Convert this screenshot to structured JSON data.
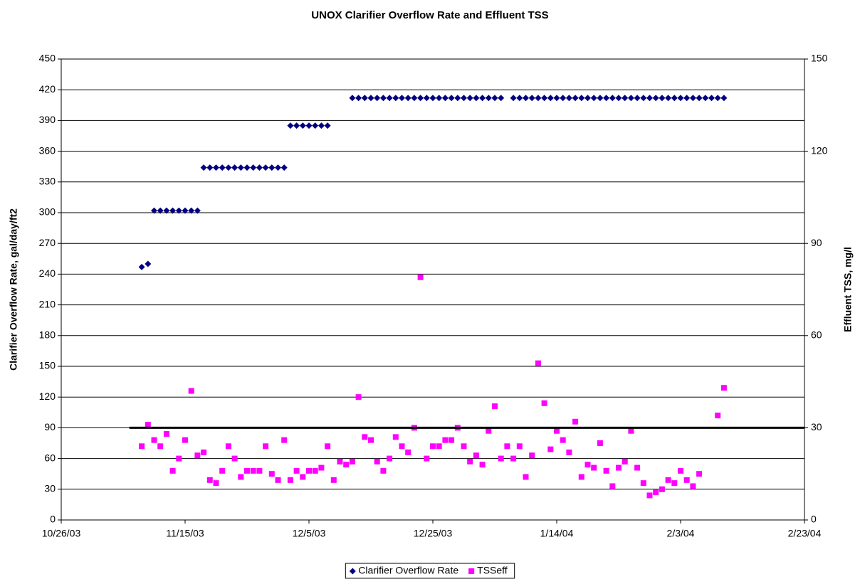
{
  "chart_data": {
    "type": "scatter",
    "title": "UNOX Clarifier Overflow Rate and Effluent TSS",
    "y_label": "Clarifier Overflow Rate, gal/day/ft2",
    "y2_label": "Effluent TSS, mg/l",
    "x": [
      "11/8/03",
      "11/9/03",
      "11/10/03",
      "11/11/03",
      "11/12/03",
      "11/13/03",
      "11/14/03",
      "11/15/03",
      "11/16/03",
      "11/17/03",
      "11/18/03",
      "11/19/03",
      "11/20/03",
      "11/21/03",
      "11/22/03",
      "11/23/03",
      "11/24/03",
      "11/25/03",
      "11/26/03",
      "11/27/03",
      "11/28/03",
      "11/29/03",
      "11/30/03",
      "12/1/03",
      "12/2/03",
      "12/3/03",
      "12/4/03",
      "12/5/03",
      "12/6/03",
      "12/7/03",
      "12/8/03",
      "12/9/03",
      "12/10/03",
      "12/11/03",
      "12/12/03",
      "12/13/03",
      "12/14/03",
      "12/15/03",
      "12/16/03",
      "12/17/03",
      "12/18/03",
      "12/19/03",
      "12/20/03",
      "12/21/03",
      "12/22/03",
      "12/23/03",
      "12/24/03",
      "12/25/03",
      "12/26/03",
      "12/27/03",
      "12/28/03",
      "12/29/03",
      "12/30/03",
      "12/31/03",
      "1/1/04",
      "1/2/04",
      "1/3/04",
      "1/4/04",
      "1/5/04",
      "1/6/04",
      "1/7/04",
      "1/8/04",
      "1/9/04",
      "1/10/04",
      "1/11/04",
      "1/12/04",
      "1/13/04",
      "1/14/04",
      "1/15/04",
      "1/16/04",
      "1/17/04",
      "1/18/04",
      "1/19/04",
      "1/20/04",
      "1/21/04",
      "1/22/04",
      "1/23/04",
      "1/24/04",
      "1/25/04",
      "1/26/04",
      "1/27/04",
      "1/28/04",
      "1/29/04",
      "1/30/04",
      "1/31/04",
      "2/1/04",
      "2/2/04",
      "2/3/04",
      "2/4/04",
      "2/5/04",
      "2/6/04",
      "2/7/04",
      "2/8/04",
      "2/9/04",
      "2/10/04"
    ],
    "series": [
      {
        "name": "Clarifier Overflow Rate",
        "color": "#000080",
        "marker": "diamond",
        "axis": "y",
        "values": [
          247,
          250,
          302,
          302,
          302,
          302,
          302,
          302,
          302,
          302,
          344,
          344,
          344,
          344,
          344,
          344,
          344,
          344,
          344,
          344,
          344,
          344,
          344,
          344,
          385,
          385,
          385,
          385,
          385,
          385,
          385,
          null,
          null,
          null,
          412,
          412,
          412,
          412,
          412,
          412,
          412,
          412,
          412,
          412,
          412,
          412,
          412,
          412,
          412,
          412,
          412,
          412,
          412,
          412,
          412,
          412,
          412,
          412,
          412,
          null,
          412,
          412,
          412,
          412,
          412,
          412,
          412,
          412,
          412,
          412,
          412,
          412,
          412,
          412,
          412,
          412,
          412,
          412,
          412,
          412,
          412,
          412,
          412,
          412,
          412,
          412,
          412,
          412,
          412,
          412,
          412,
          412,
          412,
          412,
          412
        ]
      },
      {
        "name": "TSSeff",
        "color": "#ff00ff",
        "marker": "square",
        "axis": "y2",
        "values": [
          24,
          31,
          26,
          24,
          28,
          16,
          20,
          26,
          42,
          21,
          22,
          13,
          12,
          16,
          24,
          20,
          14,
          16,
          16,
          16,
          24,
          15,
          13,
          26,
          13,
          16,
          14,
          16,
          16,
          17,
          24,
          13,
          19,
          18,
          19,
          40,
          27,
          26,
          19,
          16,
          20,
          27,
          24,
          22,
          30,
          79,
          20,
          24,
          24,
          26,
          26,
          30,
          24,
          19,
          21,
          18,
          29,
          37,
          20,
          24,
          20,
          24,
          14,
          21,
          51,
          38,
          23,
          29,
          26,
          22,
          32,
          14,
          18,
          17,
          25,
          16,
          11,
          17,
          19,
          29,
          17,
          12,
          8,
          9,
          10,
          13,
          12,
          16,
          13,
          11,
          15,
          null,
          null,
          34,
          43
        ]
      }
    ],
    "xlim": [
      "10/26/03",
      "2/23/04"
    ],
    "xticks": [
      "10/26/03",
      "11/15/03",
      "12/5/03",
      "12/25/03",
      "1/14/04",
      "2/3/04",
      "2/23/04"
    ],
    "ylim": [
      0,
      450
    ],
    "yticks": [
      0,
      30,
      60,
      90,
      120,
      150,
      180,
      210,
      240,
      270,
      300,
      330,
      360,
      390,
      420,
      450
    ],
    "y2lim": [
      0,
      150
    ],
    "y2ticks": [
      0,
      30,
      60,
      90,
      120,
      150
    ],
    "grid": true,
    "reference_line": {
      "y": 90,
      "x": [
        "11/6/03",
        "2/23/04"
      ],
      "color": "#000000"
    },
    "legend": "bottom"
  }
}
